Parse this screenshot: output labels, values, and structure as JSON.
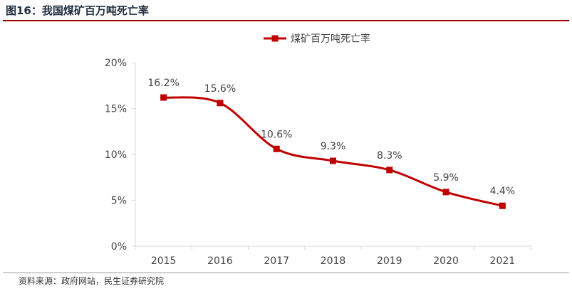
{
  "figure": {
    "title": "图16：我国煤矿百万吨死亡率",
    "source": "资料来源：政府网站，民生证券研究院"
  },
  "colors": {
    "series": "#c00000",
    "axis": "#d9d9d9",
    "text": "#444444"
  },
  "chart_data": {
    "type": "line",
    "title": "",
    "xlabel": "",
    "ylabel": "",
    "categories": [
      "2015",
      "2016",
      "2017",
      "2018",
      "2019",
      "2020",
      "2021"
    ],
    "series": [
      {
        "name": "煤矿百万吨死亡率",
        "values": [
          16.2,
          15.6,
          10.6,
          9.3,
          8.3,
          5.9,
          4.4
        ],
        "labels": [
          "16.2%",
          "15.6%",
          "10.6%",
          "9.3%",
          "8.3%",
          "5.9%",
          "4.4%"
        ]
      }
    ],
    "ylim": [
      0,
      20
    ],
    "yticks": [
      0,
      5,
      10,
      15,
      20
    ],
    "ytick_labels": [
      "0%",
      "5%",
      "10%",
      "15%",
      "20%"
    ],
    "grid": false,
    "legend_position": "top-center",
    "smooth": true,
    "marker": "square"
  }
}
